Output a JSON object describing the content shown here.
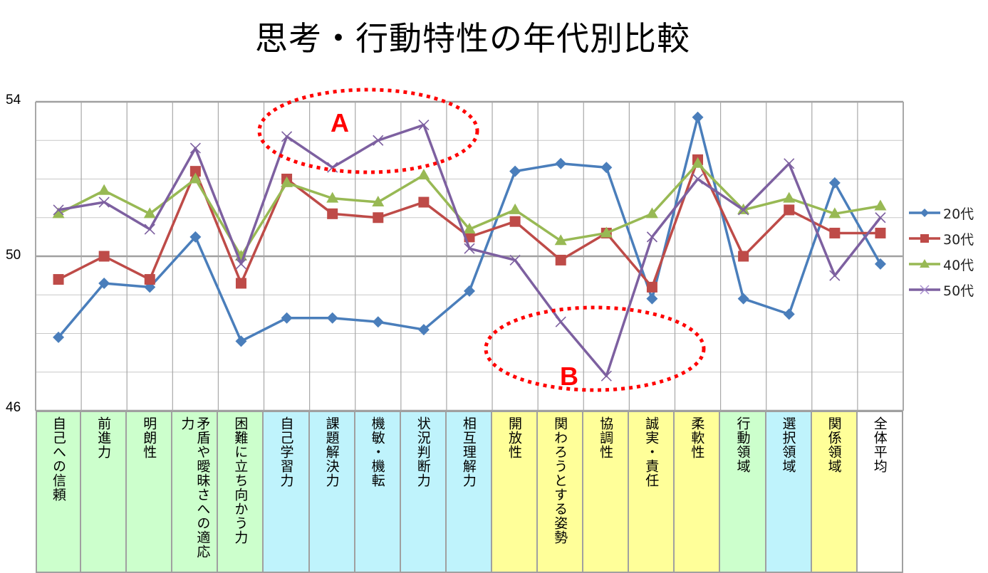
{
  "title": "思考・行動特性の年代別比較",
  "chart_data": {
    "type": "line",
    "title": "思考・行動特性の年代別比較",
    "xlabel": "",
    "ylabel": "",
    "ylim": [
      46,
      54
    ],
    "yticks": [
      54,
      50,
      46
    ],
    "minor_grid_step": 1,
    "grid": true,
    "legend_position": "right",
    "categories": [
      "自己への信頼",
      "前進力",
      "明朗性",
      "矛盾や曖昧さへの適応力",
      "困難に立ち向かう力",
      "自己学習力",
      "課題解決力",
      "機敏・機転",
      "状況判断力",
      "相互理解力",
      "開放性",
      "関わろうとする姿勢",
      "協調性",
      "誠実・責任",
      "柔軟性",
      "行動領域",
      "選択領域",
      "関係領域",
      "全体平均"
    ],
    "category_colors": [
      "#ccffcc",
      "#ccffcc",
      "#ccffcc",
      "#ccffcc",
      "#ccffcc",
      "#bff3fc",
      "#bff3fc",
      "#bff3fc",
      "#bff3fc",
      "#bff3fc",
      "#ffff99",
      "#ffff99",
      "#ffff99",
      "#ffff99",
      "#ffff99",
      "#ccffcc",
      "#bff3fc",
      "#ffff99",
      "#ffffff"
    ],
    "series": [
      {
        "name": "20代",
        "color": "#4a7ebb",
        "marker": "diamond",
        "values": [
          47.9,
          49.3,
          49.2,
          50.5,
          47.8,
          48.4,
          48.4,
          48.3,
          48.1,
          49.1,
          52.2,
          52.4,
          52.3,
          48.9,
          53.6,
          48.9,
          48.5,
          51.9,
          49.8
        ]
      },
      {
        "name": "30代",
        "color": "#be4b48",
        "marker": "square",
        "values": [
          49.4,
          50.0,
          49.4,
          52.2,
          49.3,
          52.0,
          51.1,
          51.0,
          51.4,
          50.5,
          50.9,
          49.9,
          50.6,
          49.2,
          52.5,
          50.0,
          51.2,
          50.6,
          50.6
        ]
      },
      {
        "name": "40代",
        "color": "#98b954",
        "marker": "triangle",
        "values": [
          51.1,
          51.7,
          51.1,
          52.0,
          50.0,
          51.9,
          51.5,
          51.4,
          52.1,
          50.7,
          51.2,
          50.4,
          50.6,
          51.1,
          52.4,
          51.2,
          51.5,
          51.1,
          51.3
        ]
      },
      {
        "name": "50代",
        "color": "#7d60a0",
        "marker": "x",
        "values": [
          51.2,
          51.4,
          50.7,
          52.8,
          49.8,
          53.1,
          52.3,
          53.0,
          53.4,
          50.2,
          49.9,
          48.3,
          46.9,
          50.5,
          52.0,
          51.2,
          52.4,
          49.5,
          51.0
        ]
      }
    ],
    "annotations": [
      {
        "label": "A",
        "color": "#ff0000",
        "shape": "dotted-ellipse",
        "covers": [
          "自己学習力",
          "課題解決力",
          "機敏・機転",
          "状況判断力"
        ],
        "series": "50代"
      },
      {
        "label": "B",
        "color": "#ff0000",
        "shape": "dotted-ellipse",
        "covers": [
          "開放性",
          "関わろうとする姿勢",
          "協調性",
          "誠実・責任"
        ],
        "series": "50代"
      }
    ]
  }
}
